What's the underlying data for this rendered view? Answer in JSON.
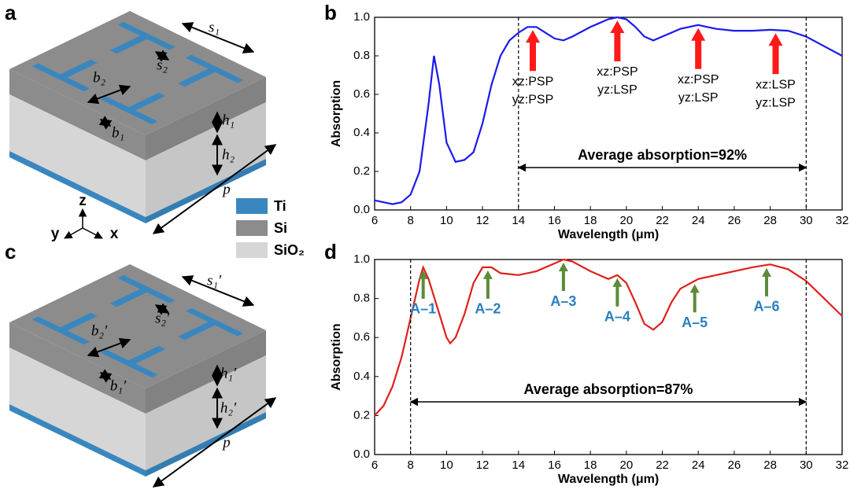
{
  "figure": {
    "panels": [
      "a",
      "b",
      "c",
      "d"
    ]
  },
  "diagrams": [
    {
      "labels": [
        "s₁",
        "s₂",
        "b₂",
        "b₁",
        "h₁",
        "h₂",
        "p"
      ]
    },
    {
      "labels": [
        "s₁'",
        "s₂'",
        "b₂'",
        "b₁'",
        "h₁'",
        "h₂'",
        "p"
      ]
    }
  ],
  "legend": {
    "items": [
      {
        "name": "Ti",
        "color": "#3a87bf"
      },
      {
        "name": "Si",
        "color": "#8c8c8c"
      },
      {
        "name": "SiO₂",
        "color": "#d6d6d6"
      }
    ]
  },
  "axes_triad": [
    "z",
    "y",
    "x"
  ],
  "chart_data": [
    {
      "type": "line",
      "xlabel": "Wavelength (μm)",
      "ylabel": "Absorption",
      "color": "#1a1aee",
      "x": [
        6,
        6.5,
        7,
        7.5,
        8,
        8.5,
        9,
        9.3,
        9.6,
        10,
        10.5,
        11,
        11.5,
        12,
        12.5,
        13,
        13.5,
        14,
        14.5,
        15,
        15.5,
        16,
        16.5,
        17,
        18,
        19,
        19.5,
        20,
        20.5,
        21,
        21.5,
        22,
        23,
        24,
        24.5,
        25,
        26,
        27,
        28,
        29,
        30,
        31,
        32
      ],
      "values": [
        0.05,
        0.04,
        0.03,
        0.04,
        0.08,
        0.2,
        0.55,
        0.8,
        0.65,
        0.35,
        0.25,
        0.26,
        0.3,
        0.45,
        0.65,
        0.8,
        0.88,
        0.92,
        0.95,
        0.95,
        0.92,
        0.89,
        0.88,
        0.9,
        0.95,
        0.99,
        1.0,
        0.99,
        0.95,
        0.9,
        0.88,
        0.9,
        0.94,
        0.96,
        0.95,
        0.94,
        0.93,
        0.93,
        0.935,
        0.93,
        0.9,
        0.85,
        0.8
      ],
      "xlim": [
        6,
        32
      ],
      "xticks": [
        6,
        8,
        10,
        12,
        14,
        16,
        18,
        20,
        22,
        24,
        26,
        28,
        30,
        32
      ],
      "ylim": [
        0,
        1
      ],
      "yticks": [
        {
          "value": 0,
          "label": "0.0"
        },
        0.2,
        0.4,
        0.6,
        0.8,
        {
          "value": 1,
          "label": "1.0"
        }
      ],
      "markers": [
        14,
        30
      ],
      "range_label": "Average absorption=92%",
      "arrow_color": "#ff1a1a",
      "label_color": "#000000",
      "annotations": [
        {
          "x": 14.8,
          "lines": [
            "xz:PSP",
            "yz:PSP"
          ]
        },
        {
          "x": 19.5,
          "lines": [
            "xz:PSP",
            "yz:LSP"
          ]
        },
        {
          "x": 24,
          "lines": [
            "xz:PSP",
            "yz:LSP"
          ]
        },
        {
          "x": 28.3,
          "lines": [
            "xz:LSP",
            "yz:LSP"
          ]
        }
      ]
    },
    {
      "type": "line",
      "xlabel": "Wavelength (μm)",
      "ylabel": "Absorption",
      "color": "#e0201b",
      "x": [
        6,
        6.5,
        7,
        7.5,
        8,
        8.5,
        8.7,
        9,
        9.5,
        10,
        10.2,
        10.5,
        11,
        11.5,
        12,
        12.5,
        13,
        14,
        15,
        16,
        16.5,
        17,
        18,
        19,
        19.5,
        20,
        20.5,
        21,
        21.5,
        22,
        22.5,
        23,
        24,
        25,
        26,
        27,
        28,
        29,
        30,
        31,
        32
      ],
      "values": [
        0.2,
        0.25,
        0.35,
        0.5,
        0.7,
        0.9,
        0.96,
        0.9,
        0.75,
        0.6,
        0.57,
        0.6,
        0.72,
        0.88,
        0.96,
        0.96,
        0.93,
        0.92,
        0.94,
        0.98,
        1.0,
        0.99,
        0.94,
        0.9,
        0.92,
        0.88,
        0.78,
        0.67,
        0.64,
        0.68,
        0.78,
        0.85,
        0.9,
        0.92,
        0.94,
        0.96,
        0.975,
        0.95,
        0.89,
        0.8,
        0.71
      ],
      "xlim": [
        6,
        32
      ],
      "xticks": [
        6,
        8,
        10,
        12,
        14,
        16,
        18,
        20,
        22,
        24,
        26,
        28,
        30,
        32
      ],
      "ylim": [
        0,
        1
      ],
      "yticks": [
        {
          "value": 0,
          "label": "0.0"
        },
        0.2,
        0.4,
        0.6,
        0.8,
        {
          "value": 1,
          "label": "1.0"
        }
      ],
      "markers": [
        8,
        30
      ],
      "range_label": "Average absorption=87%",
      "arrow_color": "#5b8c3a",
      "label_color": "#2a7fc0",
      "annotations": [
        {
          "x": 8.7,
          "label": "A–1"
        },
        {
          "x": 12.3,
          "label": "A–2"
        },
        {
          "x": 16.5,
          "label": "A–3"
        },
        {
          "x": 19.5,
          "label": "A–4"
        },
        {
          "x": 23.8,
          "label": "A–5"
        },
        {
          "x": 27.8,
          "label": "A–6"
        }
      ]
    }
  ]
}
